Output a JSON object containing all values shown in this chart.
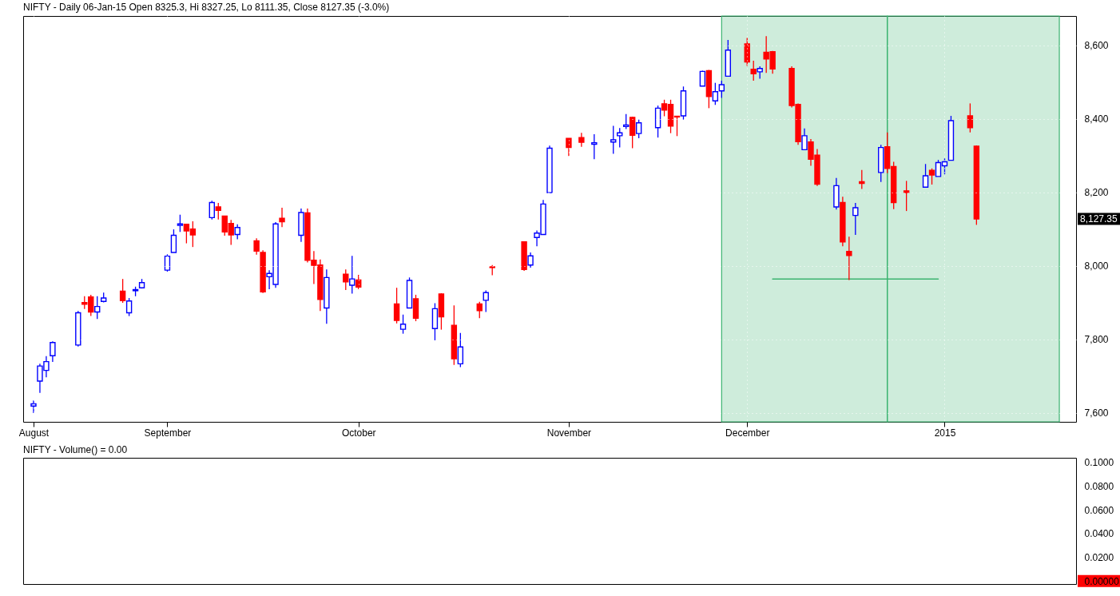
{
  "chart_data": [
    {
      "type": "candlestick",
      "title": "NIFTY - Daily 06-Jan-15 Open 8325.3, Hi 8327.25, Lo 8111.35, Close 8127.35 (-3.0%)",
      "x": [
        "2014-08-11",
        "2014-08-12",
        "2014-08-13",
        "2014-08-14",
        "2014-08-18",
        "2014-08-19",
        "2014-08-20",
        "2014-08-21",
        "2014-08-22",
        "2014-08-25",
        "2014-08-26",
        "2014-08-27",
        "2014-08-28",
        "2014-09-01",
        "2014-09-02",
        "2014-09-03",
        "2014-09-04",
        "2014-09-05",
        "2014-09-08",
        "2014-09-09",
        "2014-09-10",
        "2014-09-11",
        "2014-09-12",
        "2014-09-15",
        "2014-09-16",
        "2014-09-17",
        "2014-09-18",
        "2014-09-19",
        "2014-09-22",
        "2014-09-23",
        "2014-09-24",
        "2014-09-25",
        "2014-09-26",
        "2014-09-29",
        "2014-09-30",
        "2014-10-01",
        "2014-10-07",
        "2014-10-08",
        "2014-10-09",
        "2014-10-10",
        "2014-10-13",
        "2014-10-14",
        "2014-10-16",
        "2014-10-17",
        "2014-10-20",
        "2014-10-21",
        "2014-10-22",
        "2014-10-27",
        "2014-10-28",
        "2014-10-29",
        "2014-10-30",
        "2014-10-31",
        "2014-11-03",
        "2014-11-05",
        "2014-11-07",
        "2014-11-10",
        "2014-11-11",
        "2014-11-12",
        "2014-11-13",
        "2014-11-14",
        "2014-11-17",
        "2014-11-18",
        "2014-11-19",
        "2014-11-20",
        "2014-11-21",
        "2014-11-24",
        "2014-11-25",
        "2014-11-26",
        "2014-11-27",
        "2014-11-28",
        "2014-12-01",
        "2014-12-02",
        "2014-12-03",
        "2014-12-04",
        "2014-12-05",
        "2014-12-08",
        "2014-12-09",
        "2014-12-10",
        "2014-12-11",
        "2014-12-12",
        "2014-12-15",
        "2014-12-16",
        "2014-12-17",
        "2014-12-18",
        "2014-12-19",
        "2014-12-22",
        "2014-12-23",
        "2014-12-24",
        "2014-12-26",
        "2014-12-29",
        "2014-12-30",
        "2014-12-31",
        "2015-01-01",
        "2015-01-02",
        "2015-01-05",
        "2015-01-06"
      ],
      "ohlc": [
        [
          7618,
          7633,
          7599,
          7624
        ],
        [
          7686,
          7733,
          7654,
          7727
        ],
        [
          7715,
          7754,
          7696,
          7739
        ],
        [
          7755,
          7794,
          7738,
          7791
        ],
        [
          7784,
          7877,
          7780,
          7872
        ],
        [
          7900,
          7917,
          7882,
          7895
        ],
        [
          7915,
          7921,
          7863,
          7874
        ],
        [
          7874,
          7917,
          7855,
          7889
        ],
        [
          7903,
          7927,
          7900,
          7912
        ],
        [
          7931,
          7964,
          7899,
          7905
        ],
        [
          7872,
          7912,
          7863,
          7904
        ],
        [
          7932,
          7943,
          7917,
          7935
        ],
        [
          7940,
          7964,
          7938,
          7954
        ],
        [
          7988,
          8031,
          7984,
          8026
        ],
        [
          8036,
          8099,
          8036,
          8083
        ],
        [
          8110,
          8139,
          8092,
          8114
        ],
        [
          8113,
          8114,
          8061,
          8095
        ],
        [
          8100,
          8121,
          8051,
          8084
        ],
        [
          8131,
          8177,
          8126,
          8172
        ],
        [
          8160,
          8171,
          8126,
          8151
        ],
        [
          8135,
          8136,
          8082,
          8092
        ],
        [
          8115,
          8125,
          8057,
          8084
        ],
        [
          8085,
          8113,
          8072,
          8104
        ],
        [
          8068,
          8075,
          8030,
          8040
        ],
        [
          8036,
          8042,
          7926,
          7929
        ],
        [
          7970,
          7988,
          7936,
          7979
        ],
        [
          7949,
          8119,
          7940,
          8114
        ],
        [
          8129,
          8158,
          8105,
          8120
        ],
        [
          8083,
          8156,
          8065,
          8145
        ],
        [
          8144,
          8156,
          8009,
          8015
        ],
        [
          8015,
          8040,
          7950,
          8001
        ],
        [
          8002,
          8017,
          7877,
          7908
        ],
        [
          7885,
          7990,
          7842,
          7968
        ],
        [
          7977,
          7990,
          7934,
          7956
        ],
        [
          7947,
          8027,
          7924,
          7964
        ],
        [
          7961,
          7975,
          7936,
          7942
        ],
        [
          7896,
          7940,
          7843,
          7851
        ],
        [
          7827,
          7867,
          7815,
          7841
        ],
        [
          7885,
          7968,
          7885,
          7960
        ],
        [
          7910,
          7921,
          7849,
          7857
        ],
        [
          7829,
          7898,
          7797,
          7883
        ],
        [
          7923,
          7925,
          7826,
          7861
        ],
        [
          7838,
          7892,
          7730,
          7747
        ],
        [
          7733,
          7817,
          7724,
          7779
        ],
        [
          7896,
          7902,
          7857,
          7878
        ],
        [
          7906,
          7933,
          7874,
          7927
        ],
        [
          7997,
          8002,
          7974,
          7995
        ],
        [
          8065,
          8065,
          7986,
          7990
        ],
        [
          8002,
          8036,
          7995,
          8027
        ],
        [
          8077,
          8096,
          8053,
          8089
        ],
        [
          8085,
          8179,
          8085,
          8168
        ],
        [
          8199,
          8327,
          8199,
          8320
        ],
        [
          8347,
          8347,
          8299,
          8322
        ],
        [
          8349,
          8362,
          8324,
          8336
        ],
        [
          8331,
          8358,
          8290,
          8335
        ],
        [
          8337,
          8381,
          8305,
          8343
        ],
        [
          8354,
          8375,
          8322,
          8362
        ],
        [
          8379,
          8413,
          8372,
          8383
        ],
        [
          8404,
          8406,
          8320,
          8355
        ],
        [
          8360,
          8398,
          8347,
          8389
        ],
        [
          8376,
          8436,
          8349,
          8429
        ],
        [
          8441,
          8452,
          8407,
          8424
        ],
        [
          8439,
          8452,
          8361,
          8380
        ],
        [
          8407,
          8408,
          8353,
          8405
        ],
        [
          8408,
          8488,
          8398,
          8476
        ],
        [
          8489,
          8531,
          8489,
          8529
        ],
        [
          8531,
          8533,
          8429,
          8461
        ],
        [
          8449,
          8498,
          8438,
          8474
        ],
        [
          8476,
          8504,
          8457,
          8493
        ],
        [
          8516,
          8615,
          8516,
          8587
        ],
        [
          8604,
          8620,
          8544,
          8555
        ],
        [
          8535,
          8558,
          8504,
          8523
        ],
        [
          8528,
          8543,
          8509,
          8537
        ],
        [
          8581,
          8625,
          8525,
          8563
        ],
        [
          8583,
          8585,
          8523,
          8536
        ],
        [
          8537,
          8543,
          8431,
          8436
        ],
        [
          8439,
          8442,
          8329,
          8338
        ],
        [
          8316,
          8374,
          8316,
          8354
        ],
        [
          8337,
          8345,
          8272,
          8290
        ],
        [
          8301,
          8318,
          8217,
          8222
        ],
        [
          8160,
          8239,
          8153,
          8218
        ],
        [
          8172,
          8188,
          8053,
          8065
        ],
        [
          8039,
          8079,
          7961,
          8028
        ],
        [
          8137,
          8171,
          8084,
          8158
        ],
        [
          8229,
          8261,
          8209,
          8224
        ],
        [
          8254,
          8329,
          8228,
          8322
        ],
        [
          8324,
          8363,
          8252,
          8265
        ],
        [
          8270,
          8283,
          8154,
          8172
        ],
        [
          8204,
          8231,
          8149,
          8199
        ],
        [
          8214,
          8277,
          8214,
          8245
        ],
        [
          8260,
          8265,
          8221,
          8247
        ],
        [
          8243,
          8288,
          8243,
          8281
        ],
        [
          8272,
          8292,
          8249,
          8283
        ],
        [
          8287,
          8408,
          8287,
          8395
        ],
        [
          8408,
          8442,
          8363,
          8376
        ],
        [
          8325.3,
          8327.25,
          8111.35,
          8127.35
        ]
      ],
      "colors": [
        "#0000ff",
        "#0000ff",
        "#0000ff",
        "#0000ff",
        "#0000ff",
        "#ff0000",
        "#ff0000",
        "#0000ff",
        "#0000ff",
        "#ff0000",
        "#0000ff",
        "#0000ff",
        "#0000ff",
        "#0000ff",
        "#0000ff",
        "#0000ff",
        "#ff0000",
        "#ff0000",
        "#0000ff",
        "#ff0000",
        "#ff0000",
        "#ff0000",
        "#0000ff",
        "#ff0000",
        "#ff0000",
        "#0000ff",
        "#0000ff",
        "#ff0000",
        "#0000ff",
        "#ff0000",
        "#ff0000",
        "#ff0000",
        "#0000ff",
        "#ff0000",
        "#0000ff",
        "#ff0000",
        "#ff0000",
        "#0000ff",
        "#0000ff",
        "#ff0000",
        "#0000ff",
        "#ff0000",
        "#ff0000",
        "#0000ff",
        "#ff0000",
        "#0000ff",
        "#ff0000",
        "#ff0000",
        "#0000ff",
        "#0000ff",
        "#0000ff",
        "#0000ff",
        "#ff0000",
        "#ff0000",
        "#0000ff",
        "#0000ff",
        "#0000ff",
        "#0000ff",
        "#ff0000",
        "#0000ff",
        "#0000ff",
        "#ff0000",
        "#ff0000",
        "#ff0000",
        "#0000ff",
        "#0000ff",
        "#ff0000",
        "#0000ff",
        "#0000ff",
        "#0000ff",
        "#ff0000",
        "#ff0000",
        "#0000ff",
        "#ff0000",
        "#ff0000",
        "#ff0000",
        "#ff0000",
        "#0000ff",
        "#ff0000",
        "#ff0000",
        "#0000ff",
        "#ff0000",
        "#ff0000",
        "#0000ff",
        "#ff0000",
        "#0000ff",
        "#ff0000",
        "#ff0000",
        "#ff0000",
        "#0000ff",
        "#ff0000",
        "#0000ff",
        "#0000ff",
        "#0000ff",
        "#ff0000",
        "#ff0000"
      ],
      "series": [
        {
          "type": "line",
          "x": [
            "2014-12-05",
            "2014-12-31"
          ],
          "values": [
            7964,
            7964
          ],
          "color": "#3cb371"
        }
      ],
      "bands": [
        {
          "axis": "x",
          "from": "2014-11-27",
          "to": "2014-12-23",
          "color": "#3cb371"
        },
        {
          "axis": "x",
          "from": "2014-12-23",
          "to": "2015-01-19",
          "color": "#3cb371"
        }
      ],
      "annotations": [
        "8,127.35"
      ],
      "xlim": [
        "2014-08-10",
        "2015-01-21"
      ],
      "xticks": [
        {
          "value": "2014-08-11",
          "label": "August"
        },
        {
          "value": "2014-09-01",
          "label": "September"
        },
        {
          "value": "2014-10-01",
          "label": "October"
        },
        {
          "value": "2014-11-03",
          "label": "November"
        },
        {
          "value": "2014-12-01",
          "label": "December"
        },
        {
          "value": "2015-01-01",
          "label": "2015"
        }
      ],
      "ylim": [
        7575,
        8680
      ],
      "yticks": [
        {
          "value": 7600,
          "label": "7,600"
        },
        {
          "value": 7800,
          "label": "7,800"
        },
        {
          "value": 8000,
          "label": "8,000"
        },
        {
          "value": 8200,
          "label": "8,200"
        },
        {
          "value": 8400,
          "label": "8,400"
        },
        {
          "value": 8600,
          "label": "8,600"
        }
      ],
      "grid": true
    },
    {
      "type": "bar",
      "title": "NIFTY - Volume() = 0.00",
      "color": "#ff0000",
      "x": [
        "2014-08-11",
        "2014-08-12",
        "2014-08-13",
        "2014-08-14",
        "2014-08-18",
        "2014-08-19",
        "2014-08-20",
        "2014-08-21",
        "2014-08-22",
        "2014-08-25",
        "2014-08-26",
        "2014-08-27",
        "2014-08-28",
        "2014-09-01",
        "2014-09-02",
        "2014-09-03",
        "2014-09-04",
        "2014-09-05",
        "2014-09-08",
        "2014-09-09",
        "2014-09-10",
        "2014-09-11",
        "2014-09-12",
        "2014-09-15",
        "2014-09-16",
        "2014-09-17",
        "2014-09-18",
        "2014-09-19",
        "2014-09-22",
        "2014-09-23",
        "2014-09-24",
        "2014-09-25",
        "2014-09-26",
        "2014-09-29",
        "2014-09-30",
        "2014-10-01",
        "2014-10-07",
        "2014-10-08",
        "2014-10-09",
        "2014-10-10",
        "2014-10-13",
        "2014-10-14",
        "2014-10-16",
        "2014-10-17",
        "2014-10-20",
        "2014-10-21",
        "2014-10-22",
        "2014-10-27",
        "2014-10-28",
        "2014-10-29",
        "2014-10-30",
        "2014-10-31",
        "2014-11-03",
        "2014-11-05",
        "2014-11-07",
        "2014-11-10",
        "2014-11-11",
        "2014-11-12",
        "2014-11-13",
        "2014-11-14",
        "2014-11-17",
        "2014-11-18",
        "2014-11-19",
        "2014-11-20",
        "2014-11-21",
        "2014-11-24",
        "2014-11-25",
        "2014-11-26",
        "2014-11-27",
        "2014-11-28",
        "2014-12-01",
        "2014-12-02",
        "2014-12-03",
        "2014-12-04",
        "2014-12-05",
        "2014-12-08",
        "2014-12-09",
        "2014-12-10",
        "2014-12-11",
        "2014-12-12",
        "2014-12-15",
        "2014-12-16",
        "2014-12-17",
        "2014-12-18",
        "2014-12-19",
        "2014-12-22",
        "2014-12-23",
        "2014-12-24",
        "2014-12-26",
        "2014-12-29",
        "2014-12-30",
        "2014-12-31",
        "2015-01-01",
        "2015-01-02",
        "2015-01-05",
        "2015-01-06"
      ],
      "values": [
        0,
        0,
        0,
        0,
        0,
        0,
        0,
        0,
        0,
        0,
        0,
        0,
        0,
        0,
        0,
        0,
        0,
        0,
        0,
        0,
        0,
        0,
        0,
        0,
        0,
        0,
        0,
        0,
        0,
        0,
        0,
        0,
        0,
        0,
        0,
        0,
        0,
        0,
        0,
        0,
        0,
        0,
        0,
        0,
        0,
        0,
        0,
        0,
        0,
        0,
        0,
        0,
        0,
        0,
        0,
        0,
        0,
        0,
        0,
        0,
        0,
        0,
        0,
        0,
        0,
        0,
        0,
        0,
        0,
        0,
        0,
        0,
        0,
        0,
        0,
        0,
        0,
        0,
        0,
        0,
        0,
        0,
        0,
        0,
        0,
        0,
        0,
        0,
        0,
        0,
        0,
        0,
        0,
        0,
        0,
        0
      ],
      "xlim": [
        "2014-08-10",
        "2015-01-21"
      ],
      "tick_labels": "y",
      "ylim": [
        -0.0025,
        0.104
      ],
      "yticks": [
        {
          "value": 0,
          "label": "0.00000"
        },
        {
          "value": 0.02,
          "label": "0.0200"
        },
        {
          "value": 0.04,
          "label": "0.0400"
        },
        {
          "value": 0.06,
          "label": "0.0600"
        },
        {
          "value": 0.08,
          "label": "0.0800"
        },
        {
          "value": 0.1,
          "label": "0.1000"
        }
      ]
    }
  ]
}
